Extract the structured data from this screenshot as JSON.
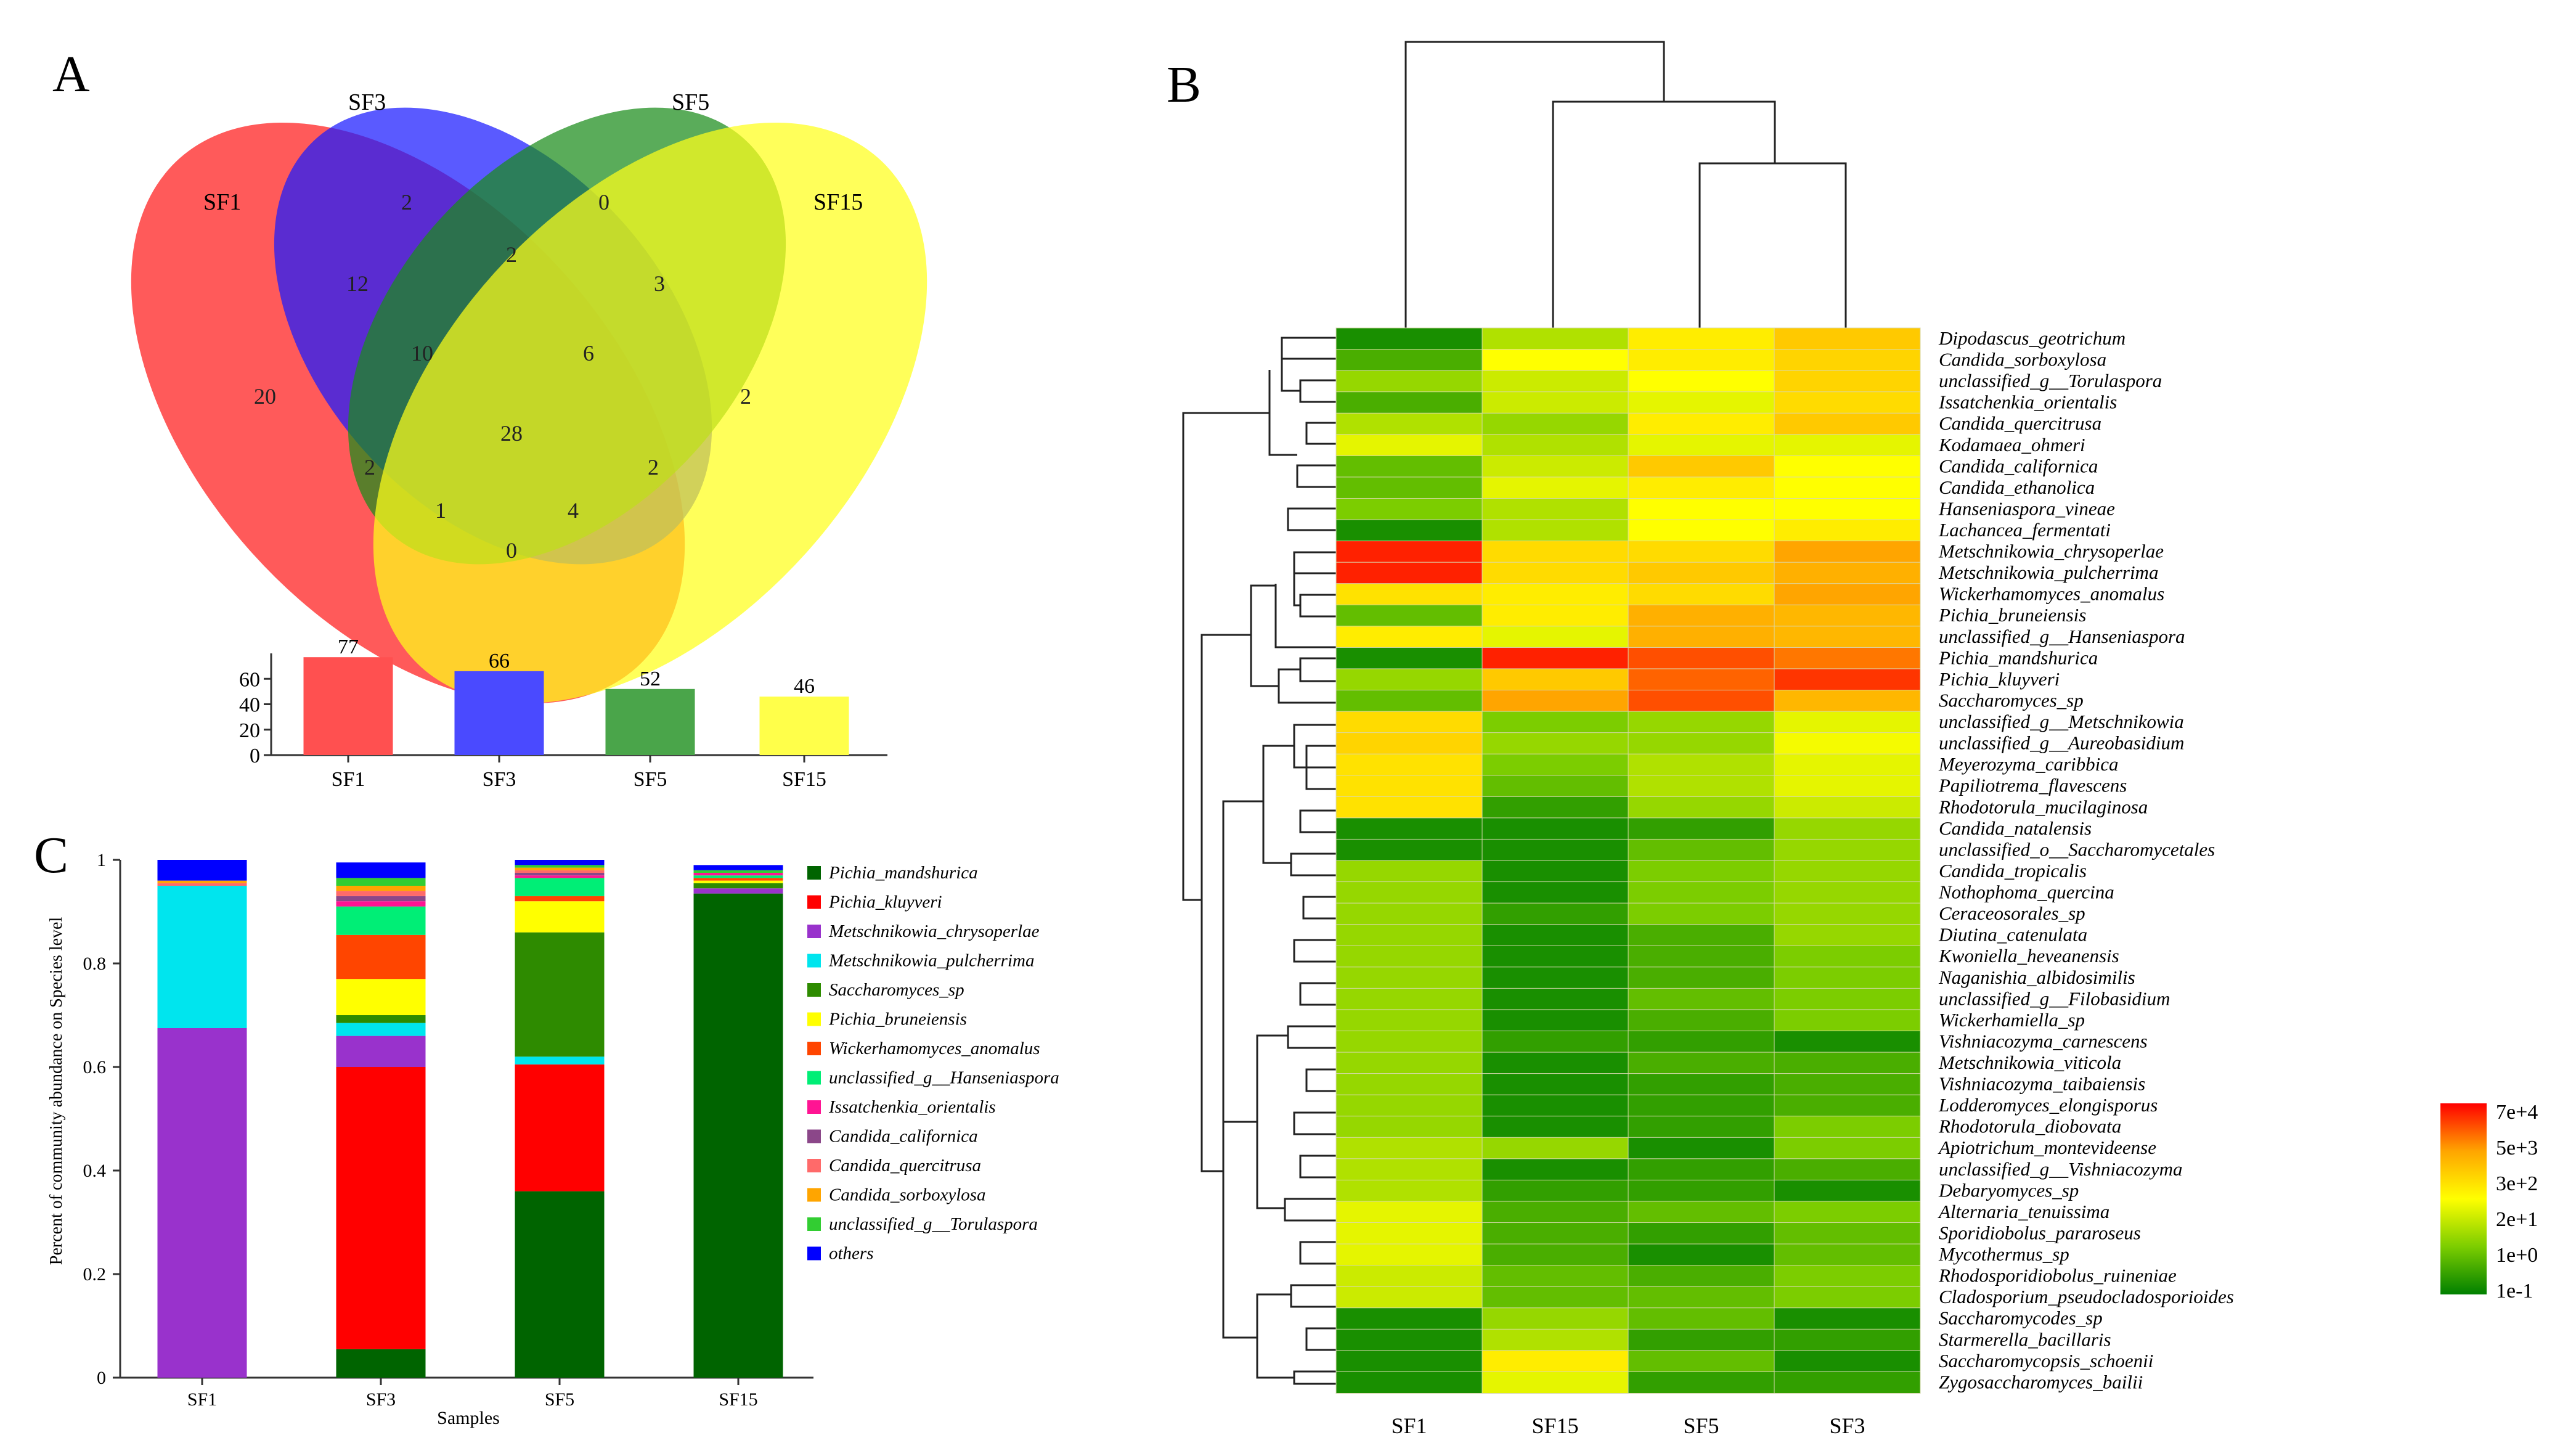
{
  "panel_labels": {
    "a": "A",
    "b": "B",
    "c": "C"
  },
  "venn": {
    "sets": [
      {
        "name": "SF1",
        "color": "#ff1a1a"
      },
      {
        "name": "SF3",
        "color": "#1a1aff"
      },
      {
        "name": "SF5",
        "color": "#1a8c1a"
      },
      {
        "name": "SF15",
        "color": "#ffff1a"
      }
    ],
    "region_counts": {
      "SF1_only": "20",
      "SF3_only": "2",
      "SF5_only": "0",
      "SF15_only": "2",
      "SF1_SF3": "12",
      "SF3_SF5": "2",
      "SF5_SF15": "3",
      "SF1_SF15": "0",
      "SF1_SF3_SF5": "10",
      "SF3_SF5_SF15": "6",
      "all": "28",
      "SF1_SF5": "2",
      "SF1_SF5_SF15_a": "1",
      "SF1_SF5_SF15_b": "4",
      "SF1_SF3_SF15": "2"
    }
  },
  "chart_data": [
    {
      "type": "bar",
      "panel": "A",
      "categories": [
        "SF1",
        "SF3",
        "SF5",
        "SF15"
      ],
      "values": [
        77,
        66,
        52,
        46
      ],
      "colors": [
        "#ff5050",
        "#4a4aff",
        "#4aa54a",
        "#ffff4a"
      ],
      "yticks": [
        0,
        20,
        40,
        60
      ],
      "ylim": [
        0,
        80
      ]
    },
    {
      "type": "bar",
      "stacked": true,
      "panel": "C",
      "categories": [
        "SF1",
        "SF3",
        "SF5",
        "SF15"
      ],
      "xlabel": "Samples",
      "ylabel": "Percent of community abundance on Species level",
      "ylim": [
        0,
        1
      ],
      "yticks": [
        "0",
        "0.2",
        "0.4",
        "0.6",
        "0.8",
        "1"
      ],
      "series": [
        {
          "name": "Pichia_mandshurica",
          "color": "#006400",
          "values": [
            0,
            0.055,
            0.36,
            0.935
          ]
        },
        {
          "name": "Pichia_kluyveri",
          "color": "#ff0000",
          "values": [
            0,
            0.545,
            0.245,
            0
          ]
        },
        {
          "name": "Metschnikowia_chrysoperlae",
          "color": "#9932cc",
          "values": [
            0.675,
            0.06,
            0,
            0.01
          ]
        },
        {
          "name": "Metschnikowia_pulcherrima",
          "color": "#00e5ee",
          "values": [
            0.275,
            0.025,
            0.015,
            0
          ]
        },
        {
          "name": "Saccharomyces_sp",
          "color": "#2e8b00",
          "values": [
            0,
            0.015,
            0.24,
            0.01
          ]
        },
        {
          "name": "Pichia_bruneiensis",
          "color": "#ffff00",
          "values": [
            0,
            0.07,
            0.06,
            0.005
          ]
        },
        {
          "name": "Wickerhamomyces_anomalus",
          "color": "#ff4500",
          "values": [
            0,
            0.085,
            0.01,
            0.005
          ]
        },
        {
          "name": "unclassified_g__Hanseniaspora",
          "color": "#00ee76",
          "values": [
            0,
            0.055,
            0.035,
            0.005
          ]
        },
        {
          "name": "Issatchenkia_orientalis",
          "color": "#ff1493",
          "values": [
            0,
            0.01,
            0.005,
            0.005
          ]
        },
        {
          "name": "Candida_californica",
          "color": "#8b4789",
          "values": [
            0,
            0.01,
            0.005,
            0
          ]
        },
        {
          "name": "Candida_quercitrusa",
          "color": "#ff6a6a",
          "values": [
            0.005,
            0.01,
            0.005,
            0
          ]
        },
        {
          "name": "Candida_sorboxylosa",
          "color": "#ffa500",
          "values": [
            0.005,
            0.01,
            0.005,
            0
          ]
        },
        {
          "name": "unclassified_g__Torulaspora",
          "color": "#32cd32",
          "values": [
            0,
            0.015,
            0.005,
            0.005
          ]
        },
        {
          "name": "others",
          "color": "#0000ff",
          "values": [
            0.04,
            0.03,
            0.01,
            0.01
          ]
        }
      ]
    },
    {
      "type": "heatmap",
      "panel": "B",
      "columns": [
        "SF1",
        "SF15",
        "SF5",
        "SF3"
      ],
      "rows": [
        "Dipodascus_geotrichum",
        "Candida_sorboxylosa",
        "unclassified_g__Torulaspora",
        "Issatchenkia_orientalis",
        "Candida_quercitrusa",
        "Kodamaea_ohmeri",
        "Candida_californica",
        "Candida_ethanolica",
        "Hanseniaspora_vineae",
        "Lachancea_fermentati",
        "Metschnikowia_chrysoperlae",
        "Metschnikowia_pulcherrima",
        "Wickerhamomyces_anomalus",
        "Pichia_bruneiensis",
        "unclassified_g__Hanseniaspora",
        "Pichia_mandshurica",
        "Pichia_kluyveri",
        "Saccharomyces_sp",
        "unclassified_g__Metschnikowia",
        "unclassified_g__Aureobasidium",
        "Meyerozyma_caribbica",
        "Papiliotrema_flavescens",
        "Rhodotorula_mucilaginosa",
        "Candida_natalensis",
        "unclassified_o__Saccharomycetales",
        "Candida_tropicalis",
        "Nothophoma_quercina",
        "Ceraceosorales_sp",
        "Diutina_catenulata",
        "Kwoniella_heveanensis",
        "Naganishia_albidosimilis",
        "unclassified_g__Filobasidium",
        "Wickerhamiella_sp",
        "Vishniacozyma_carnescens",
        "Metschnikowia_viticola",
        "Vishniacozyma_taibaiensis",
        "Lodderomyces_elongisporus",
        "Rhodotorula_diobovata",
        "Apiotrichum_montevideense",
        "unclassified_g__Vishniacozyma",
        "Debaryomyces_sp",
        "Alternaria_tenuissima",
        "Sporidiobolus_pararoseus",
        "Mycothermus_sp",
        "Rhodosporidiobolus_ruineniae",
        "Cladosporium_pseudocladosporioides",
        "Saccharomycodes_sp",
        "Starmerella_bacillaris",
        "Saccharomycopsis_schoenii",
        "Zygosaccharomyces_bailii"
      ],
      "values_level": [
        [
          0.05,
          0.35,
          0.55,
          0.65
        ],
        [
          0.15,
          0.5,
          0.55,
          0.62
        ],
        [
          0.3,
          0.4,
          0.5,
          0.62
        ],
        [
          0.15,
          0.4,
          0.45,
          0.6
        ],
        [
          0.35,
          0.3,
          0.55,
          0.65
        ],
        [
          0.45,
          0.35,
          0.45,
          0.45
        ],
        [
          0.2,
          0.4,
          0.65,
          0.5
        ],
        [
          0.2,
          0.45,
          0.55,
          0.5
        ],
        [
          0.25,
          0.35,
          0.5,
          0.5
        ],
        [
          0.05,
          0.35,
          0.5,
          0.55
        ],
        [
          0.95,
          0.6,
          0.6,
          0.75
        ],
        [
          0.95,
          0.6,
          0.65,
          0.72
        ],
        [
          0.58,
          0.55,
          0.6,
          0.75
        ],
        [
          0.2,
          0.55,
          0.72,
          0.7
        ],
        [
          0.55,
          0.45,
          0.72,
          0.7
        ],
        [
          0.05,
          0.95,
          0.88,
          0.82
        ],
        [
          0.3,
          0.65,
          0.85,
          0.92
        ],
        [
          0.2,
          0.75,
          0.88,
          0.7
        ],
        [
          0.6,
          0.25,
          0.3,
          0.45
        ],
        [
          0.62,
          0.3,
          0.3,
          0.48
        ],
        [
          0.58,
          0.25,
          0.35,
          0.45
        ],
        [
          0.58,
          0.2,
          0.35,
          0.45
        ],
        [
          0.58,
          0.1,
          0.3,
          0.4
        ],
        [
          0.05,
          0.05,
          0.1,
          0.3
        ],
        [
          0.05,
          0.05,
          0.2,
          0.3
        ],
        [
          0.3,
          0.05,
          0.25,
          0.3
        ],
        [
          0.3,
          0.05,
          0.25,
          0.3
        ],
        [
          0.3,
          0.1,
          0.25,
          0.3
        ],
        [
          0.3,
          0.05,
          0.15,
          0.3
        ],
        [
          0.3,
          0.05,
          0.15,
          0.25
        ],
        [
          0.3,
          0.05,
          0.15,
          0.25
        ],
        [
          0.3,
          0.05,
          0.2,
          0.25
        ],
        [
          0.3,
          0.05,
          0.15,
          0.25
        ],
        [
          0.3,
          0.1,
          0.1,
          0.05
        ],
        [
          0.3,
          0.05,
          0.15,
          0.15
        ],
        [
          0.3,
          0.05,
          0.1,
          0.15
        ],
        [
          0.3,
          0.05,
          0.1,
          0.15
        ],
        [
          0.3,
          0.05,
          0.1,
          0.25
        ],
        [
          0.35,
          0.3,
          0.05,
          0.25
        ],
        [
          0.35,
          0.05,
          0.1,
          0.15
        ],
        [
          0.35,
          0.1,
          0.1,
          0.05
        ],
        [
          0.45,
          0.15,
          0.2,
          0.25
        ],
        [
          0.45,
          0.15,
          0.1,
          0.2
        ],
        [
          0.45,
          0.15,
          0.05,
          0.2
        ],
        [
          0.4,
          0.2,
          0.15,
          0.25
        ],
        [
          0.4,
          0.2,
          0.2,
          0.25
        ],
        [
          0.05,
          0.3,
          0.2,
          0.05
        ],
        [
          0.05,
          0.35,
          0.1,
          0.1
        ],
        [
          0.05,
          0.55,
          0.2,
          0.05
        ],
        [
          0.05,
          0.45,
          0.1,
          0.1
        ]
      ],
      "colorbar": {
        "labels": [
          "7e+4",
          "5e+3",
          "3e+2",
          "2e+1",
          "1e+0",
          "1e-1"
        ],
        "stops": [
          "#ff0000",
          "#ffa500",
          "#ffff00",
          "#7ccd00",
          "#008000"
        ]
      }
    }
  ]
}
